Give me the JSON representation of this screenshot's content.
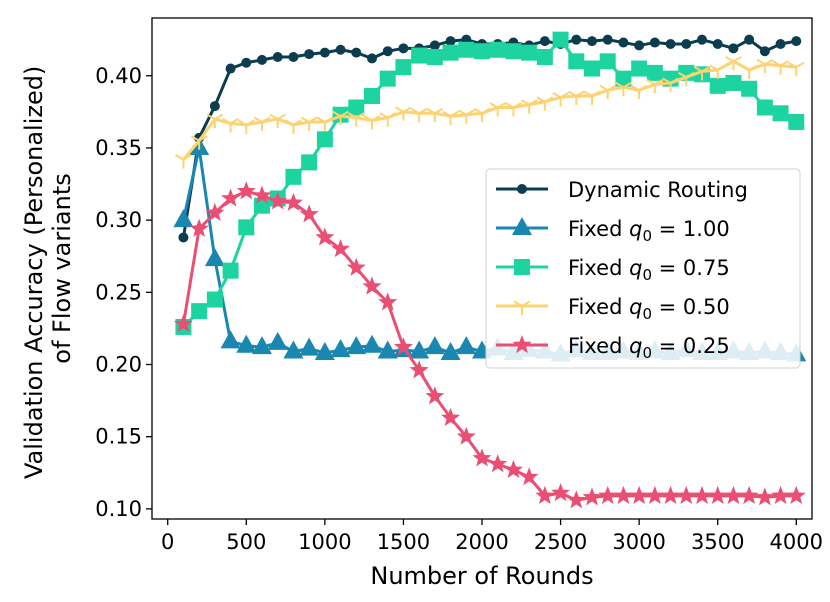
{
  "chart_data": {
    "type": "line",
    "title": "",
    "xlabel": "Number of Rounds",
    "ylabel_lines": [
      "Validation Accuracy (Personalized)",
      "of Flow variants"
    ],
    "xlim": [
      -100,
      4100
    ],
    "ylim": [
      0.093,
      0.44
    ],
    "xticks": [
      0,
      500,
      1000,
      1500,
      2000,
      2500,
      3000,
      3500,
      4000
    ],
    "xtick_labels": [
      "0",
      "500",
      "1000",
      "1500",
      "2000",
      "2500",
      "3000",
      "3500",
      "4000"
    ],
    "yticks": [
      0.1,
      0.15,
      0.2,
      0.25,
      0.3,
      0.35,
      0.4
    ],
    "ytick_labels": [
      "0.10",
      "0.15",
      "0.20",
      "0.25",
      "0.30",
      "0.35",
      "0.40"
    ],
    "legend_position": "center-right",
    "x": [
      100,
      200,
      300,
      400,
      500,
      600,
      700,
      800,
      900,
      1000,
      1100,
      1200,
      1300,
      1400,
      1500,
      1600,
      1700,
      1800,
      1900,
      2000,
      2100,
      2200,
      2300,
      2400,
      2500,
      2600,
      2700,
      2800,
      2900,
      3000,
      3100,
      3200,
      3300,
      3400,
      3500,
      3600,
      3700,
      3800,
      3900,
      4000
    ],
    "series": [
      {
        "name": "Dynamic Routing",
        "legend_prefix": "Dynamic Routing",
        "legend_suffix": "",
        "color": "#0b3d4f",
        "marker": "circle",
        "values": [
          0.288,
          0.357,
          0.379,
          0.405,
          0.409,
          0.411,
          0.413,
          0.413,
          0.415,
          0.416,
          0.418,
          0.416,
          0.412,
          0.417,
          0.419,
          0.419,
          0.421,
          0.424,
          0.425,
          0.422,
          0.422,
          0.423,
          0.421,
          0.424,
          0.422,
          0.425,
          0.424,
          0.425,
          0.423,
          0.421,
          0.423,
          0.422,
          0.422,
          0.425,
          0.422,
          0.419,
          0.425,
          0.417,
          0.422,
          0.424
        ]
      },
      {
        "name": "Fixed q0 = 1.00",
        "legend_prefix": "Fixed ",
        "legend_suffix": " = 1.00",
        "color": "#1a87b0",
        "marker": "triangle",
        "values": [
          0.3,
          0.35,
          0.273,
          0.216,
          0.213,
          0.212,
          0.215,
          0.209,
          0.211,
          0.208,
          0.21,
          0.212,
          0.213,
          0.209,
          0.21,
          0.209,
          0.212,
          0.208,
          0.212,
          0.209,
          0.211,
          0.208,
          0.21,
          0.209,
          0.207,
          0.21,
          0.208,
          0.208,
          0.209,
          0.208,
          0.209,
          0.208,
          0.21,
          0.208,
          0.208,
          0.209,
          0.208,
          0.209,
          0.208,
          0.207
        ]
      },
      {
        "name": "Fixed q0 = 0.75",
        "legend_prefix": "Fixed ",
        "legend_suffix": " = 0.75",
        "color": "#1dd4a0",
        "marker": "square",
        "values": [
          0.226,
          0.237,
          0.245,
          0.265,
          0.295,
          0.31,
          0.315,
          0.33,
          0.34,
          0.356,
          0.373,
          0.378,
          0.386,
          0.398,
          0.406,
          0.414,
          0.413,
          0.416,
          0.418,
          0.417,
          0.418,
          0.417,
          0.416,
          0.413,
          0.425,
          0.41,
          0.405,
          0.41,
          0.398,
          0.405,
          0.402,
          0.398,
          0.402,
          0.401,
          0.393,
          0.395,
          0.391,
          0.378,
          0.374,
          0.368
        ]
      },
      {
        "name": "Fixed q0 = 0.50",
        "legend_prefix": "Fixed ",
        "legend_suffix": " = 0.50",
        "color": "#fdd271",
        "marker": "tri_down",
        "values": [
          0.342,
          0.355,
          0.37,
          0.367,
          0.366,
          0.368,
          0.37,
          0.366,
          0.368,
          0.368,
          0.372,
          0.371,
          0.369,
          0.371,
          0.375,
          0.374,
          0.374,
          0.372,
          0.373,
          0.374,
          0.378,
          0.378,
          0.38,
          0.382,
          0.385,
          0.386,
          0.386,
          0.39,
          0.392,
          0.39,
          0.394,
          0.395,
          0.399,
          0.403,
          0.404,
          0.41,
          0.404,
          0.408,
          0.407,
          0.406
        ]
      },
      {
        "name": "Fixed q0 = 0.25",
        "legend_prefix": "Fixed ",
        "legend_suffix": " = 0.25",
        "color": "#ea4f73",
        "marker": "star",
        "values": [
          0.228,
          0.294,
          0.305,
          0.315,
          0.32,
          0.317,
          0.313,
          0.312,
          0.304,
          0.288,
          0.28,
          0.267,
          0.254,
          0.243,
          0.212,
          0.196,
          0.178,
          0.163,
          0.15,
          0.135,
          0.131,
          0.127,
          0.122,
          0.109,
          0.111,
          0.106,
          0.108,
          0.109,
          0.109,
          0.109,
          0.109,
          0.109,
          0.109,
          0.109,
          0.109,
          0.109,
          0.109,
          0.108,
          0.109,
          0.109
        ]
      }
    ]
  },
  "legend": {
    "subscript_var": "q",
    "subscript_idx": "0"
  }
}
